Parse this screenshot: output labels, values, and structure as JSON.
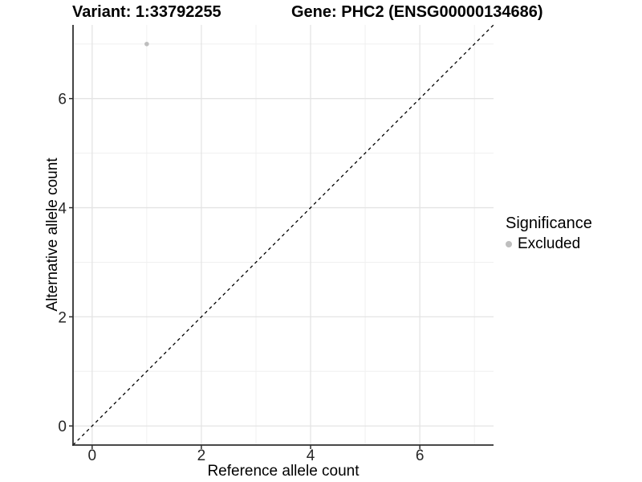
{
  "chart_data": {
    "type": "scatter",
    "title_left": "Variant: 1:33792255",
    "title_right": "Gene: PHC2 (ENSG00000134686)",
    "xlabel": "Reference allele count",
    "ylabel": "Alternative allele count",
    "xlim": [
      -0.35,
      7.35
    ],
    "ylim": [
      -0.35,
      7.35
    ],
    "x_ticks": [
      0,
      2,
      4,
      6
    ],
    "y_ticks": [
      0,
      2,
      4,
      6
    ],
    "x_minor_ticks": [
      1,
      3,
      5,
      7
    ],
    "y_minor_ticks": [
      1,
      3,
      5,
      7
    ],
    "grid": true,
    "series": [
      {
        "name": "Excluded",
        "color": "#bebebe",
        "points": [
          {
            "x": 1,
            "y": 7
          }
        ]
      }
    ],
    "reference_line": {
      "type": "identity",
      "slope": 1,
      "intercept": 0,
      "style": "dashed",
      "color": "#000000"
    },
    "legend": {
      "title": "Significance",
      "position": "right",
      "items": [
        {
          "label": "Excluded",
          "color": "#bebebe"
        }
      ]
    }
  },
  "colors": {
    "background": "#ffffff",
    "grid_major": "#e4e4e4",
    "grid_minor": "#f0f0f0",
    "axis": "#2f2f2f",
    "tick_text": "#262626",
    "point": "#bebebe"
  }
}
